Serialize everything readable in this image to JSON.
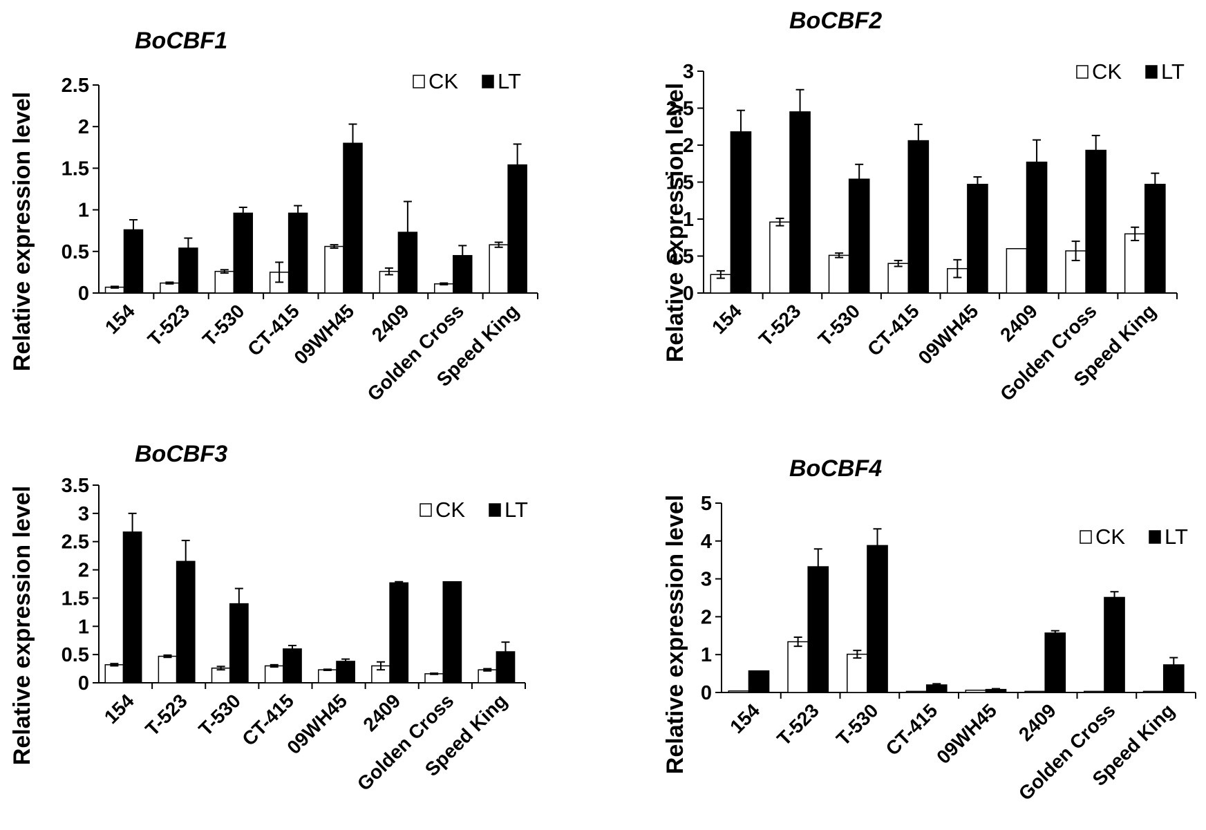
{
  "chart_data": [
    {
      "type": "bar",
      "title": "BoCBF1",
      "xlabel": "",
      "ylabel": "Relative expression level",
      "ylim": [
        0,
        2.5
      ],
      "yticks": [
        "0",
        "0.5",
        "1",
        "1.5",
        "2",
        "2.5"
      ],
      "legend": "top-right",
      "categories": [
        "154",
        "T-523",
        "T-530",
        "CT-415",
        "09WH45",
        "2409",
        "Golden Cross",
        "Speed King"
      ],
      "series": [
        {
          "name": "CK",
          "color": "#ffffff",
          "values": [
            0.07,
            0.12,
            0.26,
            0.25,
            0.56,
            0.26,
            0.11,
            0.58
          ],
          "errors": [
            0.01,
            0.01,
            0.02,
            0.12,
            0.02,
            0.04,
            0.01,
            0.03
          ]
        },
        {
          "name": "LT",
          "color": "#000000",
          "values": [
            0.76,
            0.54,
            0.96,
            0.96,
            1.8,
            0.73,
            0.45,
            1.54
          ],
          "errors": [
            0.12,
            0.12,
            0.07,
            0.09,
            0.23,
            0.37,
            0.12,
            0.25
          ]
        }
      ]
    },
    {
      "type": "bar",
      "title": "BoCBF2",
      "xlabel": "",
      "ylabel": "Relative expression level",
      "ylim": [
        0,
        3
      ],
      "yticks": [
        "0",
        "0.5",
        "1",
        "1.5",
        "2",
        "2.5",
        "3"
      ],
      "legend": "top-right",
      "categories": [
        "154",
        "T-523",
        "T-530",
        "CT-415",
        "09WH45",
        "2409",
        "Golden Cross",
        "Speed King"
      ],
      "series": [
        {
          "name": "CK",
          "color": "#ffffff",
          "values": [
            0.25,
            0.96,
            0.51,
            0.4,
            0.33,
            0.6,
            0.57,
            0.8
          ],
          "errors": [
            0.05,
            0.05,
            0.03,
            0.04,
            0.12,
            0.0,
            0.13,
            0.09
          ]
        },
        {
          "name": "LT",
          "color": "#000000",
          "values": [
            2.18,
            2.45,
            1.54,
            2.06,
            1.47,
            1.77,
            1.93,
            1.47
          ],
          "errors": [
            0.29,
            0.3,
            0.2,
            0.22,
            0.1,
            0.3,
            0.2,
            0.15
          ]
        }
      ]
    },
    {
      "type": "bar",
      "title": "BoCBF3",
      "xlabel": "",
      "ylabel": "Relative expression level",
      "ylim": [
        0,
        3.5
      ],
      "yticks": [
        "0",
        "0.5",
        "1",
        "1.5",
        "2",
        "2.5",
        "3",
        "3.5"
      ],
      "legend": "top-right",
      "categories": [
        "154",
        "T-523",
        "T-530",
        "CT-415",
        "09WH45",
        "2409",
        "Golden Cross",
        "Speed King"
      ],
      "series": [
        {
          "name": "CK",
          "color": "#ffffff",
          "values": [
            0.32,
            0.47,
            0.26,
            0.3,
            0.23,
            0.3,
            0.16,
            0.23
          ],
          "errors": [
            0.02,
            0.02,
            0.03,
            0.02,
            0.01,
            0.07,
            0.01,
            0.02
          ]
        },
        {
          "name": "LT",
          "color": "#000000",
          "values": [
            2.67,
            2.15,
            1.4,
            0.6,
            0.38,
            1.77,
            1.79,
            0.55
          ],
          "errors": [
            0.33,
            0.37,
            0.27,
            0.06,
            0.04,
            0.02,
            0.0,
            0.17
          ]
        }
      ]
    },
    {
      "type": "bar",
      "title": "BoCBF4",
      "xlabel": "",
      "ylabel": "Relative expression level",
      "ylim": [
        0,
        5
      ],
      "yticks": [
        "0",
        "1",
        "2",
        "3",
        "4",
        "5"
      ],
      "legend": "top-right",
      "categories": [
        "154",
        "T-523",
        "T-530",
        "CT-415",
        "09WH45",
        "2409",
        "Golden Cross",
        "Speed King"
      ],
      "series": [
        {
          "name": "CK",
          "color": "#ffffff",
          "values": [
            0.04,
            1.34,
            1.01,
            0.03,
            0.06,
            0.03,
            0.03,
            0.03
          ],
          "errors": [
            0.0,
            0.12,
            0.1,
            0.0,
            0.0,
            0.0,
            0.0,
            0.0
          ]
        },
        {
          "name": "LT",
          "color": "#000000",
          "values": [
            0.57,
            3.32,
            3.88,
            0.2,
            0.08,
            1.57,
            2.51,
            0.73
          ],
          "errors": [
            0.0,
            0.47,
            0.44,
            0.03,
            0.02,
            0.06,
            0.15,
            0.19
          ]
        }
      ]
    }
  ]
}
